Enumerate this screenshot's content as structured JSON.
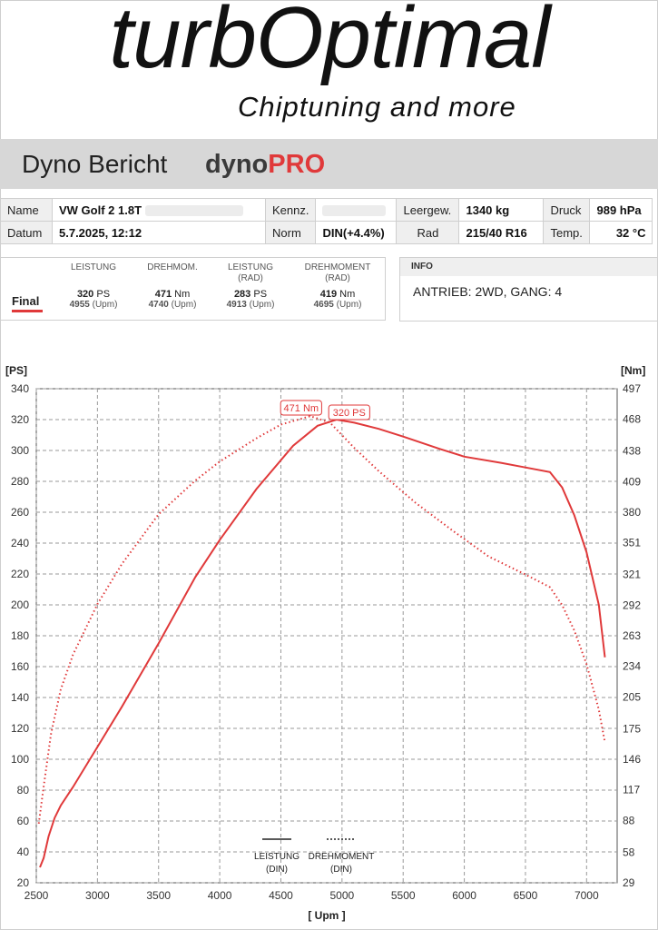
{
  "header": {
    "logo_main": "turbOptimal",
    "logo_sub": "Chiptuning and more",
    "report_title": "Dyno Bericht",
    "brand_a": "dyno",
    "brand_b": "PRO"
  },
  "info_table": {
    "name_label": "Name",
    "name_value": "VW Golf 2 1.8T",
    "kennz_label": "Kennz.",
    "leergew_label": "Leergew.",
    "leergew_value": "1340 kg",
    "druck_label": "Druck",
    "druck_value": "989 hPa",
    "datum_label": "Datum",
    "datum_value": "5.7.2025, 12:12",
    "norm_label": "Norm",
    "norm_value": "DIN(+4.4%)",
    "rad_label": "Rad",
    "rad_value": "215/40 R16",
    "temp_label": "Temp.",
    "temp_value": "32 °C"
  },
  "results": {
    "headers": [
      "LEISTUNG",
      "DREHMOM.",
      "LEISTUNG",
      "(RAD)",
      "DREHMOMENT",
      "(RAD)"
    ],
    "row_label": "Final",
    "leistung": "320",
    "leistung_unit": "PS",
    "leistung_rpm": "4955",
    "rpm_unit": "(Upm)",
    "drehmom": "471",
    "drehmom_unit": "Nm",
    "drehmom_rpm": "4740",
    "leistung_rad": "283",
    "leistung_rad_unit": "PS",
    "leistung_rad_rpm": "4913",
    "drehmom_rad": "419",
    "drehmom_rad_unit": "Nm",
    "drehmom_rad_rpm": "4695"
  },
  "info_box": {
    "title": "INFO",
    "text": "ANTRIEB: 2WD,  GANG: 4"
  },
  "colors": {
    "accent": "#e0393a",
    "grid": "#9a9a9a"
  },
  "chart_data": {
    "type": "line",
    "xlabel": "[ Upm ]",
    "ylabel_left": "[PS]",
    "ylabel_right": "[Nm]",
    "xlim": [
      2500,
      7250
    ],
    "ylim_left": [
      20,
      340
    ],
    "ylim_right": [
      29,
      497
    ],
    "x_ticks": [
      2500,
      3000,
      3500,
      4000,
      4500,
      5000,
      5500,
      6000,
      6500,
      7000
    ],
    "y_ticks_left": [
      20,
      40,
      60,
      80,
      100,
      120,
      140,
      160,
      180,
      200,
      220,
      240,
      260,
      280,
      300,
      320,
      340
    ],
    "y_ticks_right": [
      29,
      58,
      88,
      117,
      146,
      175,
      205,
      234,
      263,
      292,
      321,
      351,
      380,
      409,
      438,
      468,
      497
    ],
    "grid": true,
    "legend": [
      "LEISTUNG (DIN)",
      "DREHMOMENT (DIN)"
    ],
    "legend_placement": "bottom-center",
    "annotations": [
      "471 Nm",
      "320 PS"
    ],
    "series": [
      {
        "name": "LEISTUNG (DIN)",
        "axis": "left",
        "style": "solid",
        "x": [
          2530,
          2560,
          2600,
          2650,
          2700,
          2800,
          3000,
          3200,
          3500,
          3800,
          4000,
          4300,
          4600,
          4800,
          4955,
          5100,
          5300,
          5500,
          5800,
          6000,
          6300,
          6500,
          6700,
          6800,
          6900,
          7000,
          7100,
          7150
        ],
        "y": [
          30,
          36,
          50,
          62,
          70,
          82,
          108,
          134,
          175,
          218,
          242,
          275,
          303,
          316,
          320,
          318,
          314,
          309,
          301,
          296,
          292,
          289,
          286,
          276,
          258,
          234,
          200,
          166
        ]
      },
      {
        "name": "DREHMOMENT (DIN)",
        "axis": "right",
        "style": "dotted",
        "x": [
          2520,
          2560,
          2620,
          2700,
          2800,
          3000,
          3200,
          3500,
          3800,
          4000,
          4300,
          4500,
          4740,
          4900,
          5100,
          5300,
          5600,
          5900,
          6200,
          6500,
          6700,
          6800,
          6900,
          7000,
          7100,
          7150
        ],
        "y": [
          85,
          120,
          170,
          212,
          245,
          293,
          331,
          378,
          410,
          428,
          450,
          463,
          471,
          465,
          441,
          419,
          389,
          363,
          338,
          321,
          309,
          292,
          268,
          236,
          193,
          162
        ]
      }
    ]
  }
}
